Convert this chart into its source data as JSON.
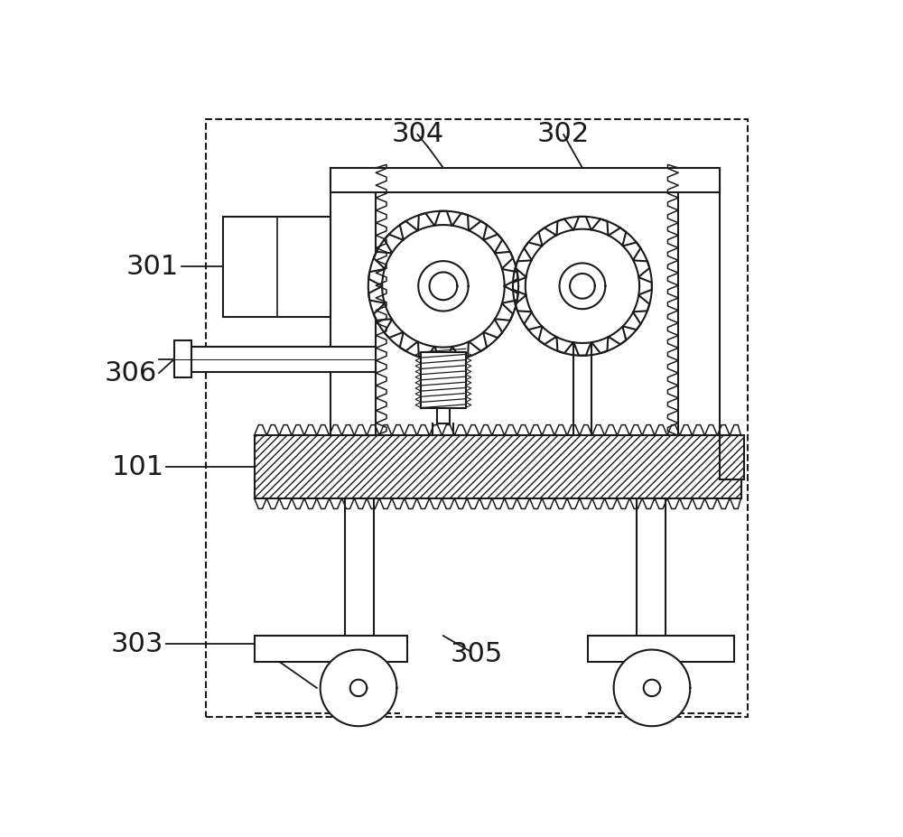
{
  "bg_color": "#ffffff",
  "line_color": "#1a1a1a",
  "label_fontsize": 22,
  "figsize": [
    10.0,
    9.27
  ],
  "dpi": 100,
  "ann_lw": 1.3,
  "lw": 1.5,
  "lw_thin": 1.1
}
